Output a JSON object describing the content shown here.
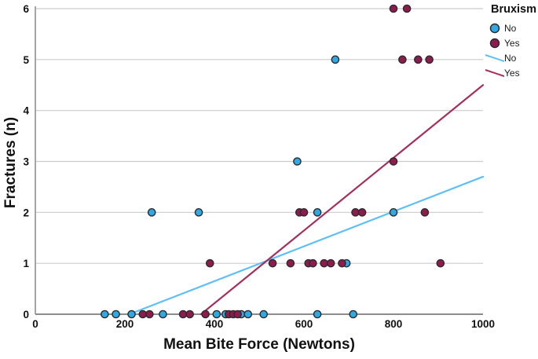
{
  "chart_data": {
    "type": "scatter",
    "title": "",
    "xlabel": "Mean Bite Force (Newtons)",
    "ylabel": "Fractures (n)",
    "legend_title": "Bruxism",
    "xlim": [
      0,
      1000
    ],
    "ylim": [
      0,
      6
    ],
    "xticks": [
      0,
      200,
      400,
      600,
      800,
      1000
    ],
    "yticks": [
      0,
      1,
      2,
      3,
      4,
      5,
      6
    ],
    "grid": "horizontal-only",
    "legend_position": "top-right-outside",
    "colors": {
      "scatter_no_fill": "#2fa9e3",
      "scatter_yes_fill": "#8f1b4e",
      "marker_outline": "#2b2b2b",
      "line_no": "#5fc0f5",
      "line_yes": "#a52e5e",
      "gridline": "#cccccc",
      "axis": "#8c8c8c"
    },
    "series": [
      {
        "name": "No",
        "kind": "scatter",
        "color": "#2fa9e3",
        "points": [
          [
            155,
            0
          ],
          [
            180,
            0
          ],
          [
            215,
            0
          ],
          [
            285,
            0
          ],
          [
            405,
            0
          ],
          [
            425,
            0
          ],
          [
            460,
            0
          ],
          [
            475,
            0
          ],
          [
            510,
            0
          ],
          [
            630,
            0
          ],
          [
            710,
            0
          ],
          [
            695,
            1
          ],
          [
            260,
            2
          ],
          [
            365,
            2
          ],
          [
            630,
            2
          ],
          [
            800,
            2
          ],
          [
            585,
            3
          ],
          [
            670,
            5
          ]
        ]
      },
      {
        "name": "Yes",
        "kind": "scatter",
        "color": "#8f1b4e",
        "points": [
          [
            240,
            0
          ],
          [
            255,
            0
          ],
          [
            330,
            0
          ],
          [
            345,
            0
          ],
          [
            380,
            0
          ],
          [
            432,
            0
          ],
          [
            442,
            0
          ],
          [
            452,
            0
          ],
          [
            390,
            1
          ],
          [
            530,
            1
          ],
          [
            570,
            1
          ],
          [
            610,
            1
          ],
          [
            620,
            1
          ],
          [
            645,
            1
          ],
          [
            660,
            1
          ],
          [
            685,
            1
          ],
          [
            905,
            1
          ],
          [
            590,
            2
          ],
          [
            600,
            2
          ],
          [
            715,
            2
          ],
          [
            730,
            2
          ],
          [
            870,
            2
          ],
          [
            800,
            3
          ],
          [
            820,
            5
          ],
          [
            855,
            5
          ],
          [
            880,
            5
          ],
          [
            800,
            6
          ],
          [
            830,
            6
          ]
        ]
      },
      {
        "name": "No",
        "kind": "fit-line",
        "color": "#5fc0f5",
        "from": [
          210,
          0
        ],
        "to": [
          1000,
          2.7
        ]
      },
      {
        "name": "Yes",
        "kind": "fit-line",
        "color": "#a52e5e",
        "from": [
          370,
          0
        ],
        "to": [
          1000,
          4.5
        ]
      }
    ],
    "legend_items": [
      {
        "label": "No",
        "kind": "marker",
        "color": "#2fa9e3"
      },
      {
        "label": "Yes",
        "kind": "marker",
        "color": "#8f1b4e"
      },
      {
        "label": "No",
        "kind": "line",
        "color": "#5fc0f5"
      },
      {
        "label": "Yes",
        "kind": "line",
        "color": "#a52e5e"
      }
    ]
  }
}
